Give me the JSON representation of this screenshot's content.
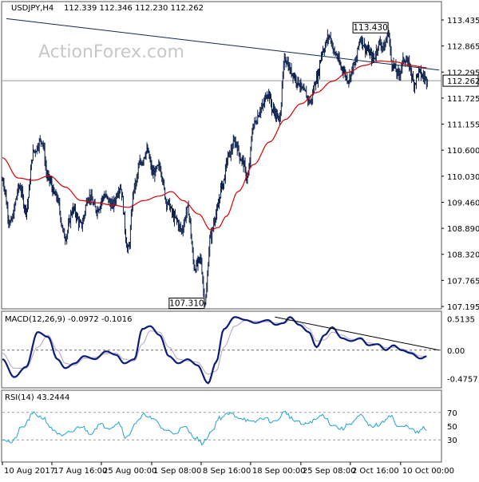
{
  "chart_data": {
    "type": "financial",
    "header": {
      "symbol_label": "USDJPY,H4",
      "ohlc": "112.339 112.346 112.230 112.262"
    },
    "watermark": "ActionForex.com",
    "price_panel": {
      "y_ticks": [
        "113.435",
        "112.865",
        "112.295",
        "111.725",
        "111.155",
        "110.600",
        "110.030",
        "109.460",
        "108.890",
        "108.320",
        "107.765",
        "107.195"
      ],
      "y_range": [
        107.195,
        113.7
      ],
      "last_price": "112.262",
      "last_value": 112.262,
      "annotations": [
        {
          "label": "113.430",
          "value": 113.43,
          "bar": 491
        },
        {
          "label": "107.310",
          "value": 107.31,
          "bar": 257
        }
      ],
      "trendline": {
        "from": {
          "bar": 5,
          "value": 113.64
        },
        "to": {
          "bar": 556,
          "value": 112.5
        }
      },
      "anchors": [
        [
          0,
          110.05
        ],
        [
          10,
          109.1
        ],
        [
          22,
          109.9
        ],
        [
          30,
          109.4
        ],
        [
          40,
          110.7
        ],
        [
          50,
          110.95
        ],
        [
          58,
          110.1
        ],
        [
          68,
          109.7
        ],
        [
          80,
          108.8
        ],
        [
          90,
          109.4
        ],
        [
          100,
          109.05
        ],
        [
          110,
          109.7
        ],
        [
          120,
          109.4
        ],
        [
          130,
          109.7
        ],
        [
          140,
          109.5
        ],
        [
          150,
          109.9
        ],
        [
          160,
          108.5
        ],
        [
          168,
          109.9
        ],
        [
          176,
          110.45
        ],
        [
          184,
          110.7
        ],
        [
          192,
          110.2
        ],
        [
          200,
          110.35
        ],
        [
          210,
          109.55
        ],
        [
          220,
          109.2
        ],
        [
          228,
          108.95
        ],
        [
          236,
          109.4
        ],
        [
          245,
          108.1
        ],
        [
          252,
          108.3
        ],
        [
          258,
          107.35
        ],
        [
          265,
          108.8
        ],
        [
          272,
          109.3
        ],
        [
          280,
          109.95
        ],
        [
          288,
          110.6
        ],
        [
          296,
          110.9
        ],
        [
          305,
          110.5
        ],
        [
          312,
          110.1
        ],
        [
          320,
          111.3
        ],
        [
          330,
          111.65
        ],
        [
          338,
          112.0
        ],
        [
          345,
          111.6
        ],
        [
          352,
          111.4
        ],
        [
          360,
          112.75
        ],
        [
          368,
          112.45
        ],
        [
          376,
          112.25
        ],
        [
          384,
          112.0
        ],
        [
          392,
          111.8
        ],
        [
          400,
          112.3
        ],
        [
          408,
          112.95
        ],
        [
          416,
          113.25
        ],
        [
          424,
          112.85
        ],
        [
          432,
          112.55
        ],
        [
          440,
          112.3
        ],
        [
          448,
          112.6
        ],
        [
          456,
          113.2
        ],
        [
          464,
          112.95
        ],
        [
          472,
          112.75
        ],
        [
          480,
          113.1
        ],
        [
          486,
          113.0
        ],
        [
          491,
          113.35
        ],
        [
          496,
          112.65
        ],
        [
          504,
          112.4
        ],
        [
          512,
          112.75
        ],
        [
          518,
          112.6
        ],
        [
          524,
          112.2
        ],
        [
          530,
          112.45
        ],
        [
          536,
          112.35
        ],
        [
          541,
          112.26
        ]
      ],
      "ma_anchors": [
        [
          0,
          110.55
        ],
        [
          20,
          110.1
        ],
        [
          40,
          110.05
        ],
        [
          60,
          110.15
        ],
        [
          80,
          109.9
        ],
        [
          100,
          109.6
        ],
        [
          120,
          109.55
        ],
        [
          140,
          109.5
        ],
        [
          160,
          109.45
        ],
        [
          180,
          109.6
        ],
        [
          200,
          109.7
        ],
        [
          215,
          109.8
        ],
        [
          230,
          109.6
        ],
        [
          250,
          109.3
        ],
        [
          265,
          108.95
        ],
        [
          275,
          109.0
        ],
        [
          285,
          109.25
        ],
        [
          300,
          109.8
        ],
        [
          320,
          110.4
        ],
        [
          340,
          110.9
        ],
        [
          360,
          111.4
        ],
        [
          380,
          111.75
        ],
        [
          400,
          112.0
        ],
        [
          420,
          112.25
        ],
        [
          440,
          112.45
        ],
        [
          460,
          112.6
        ],
        [
          480,
          112.7
        ],
        [
          500,
          112.68
        ],
        [
          520,
          112.6
        ],
        [
          541,
          112.55
        ]
      ]
    },
    "macd_panel": {
      "label": "MACD(12,26,9) -0.0972 -0.1016",
      "y_ticks": [
        "0.5135",
        "0.00",
        "-0.4757"
      ],
      "y_range": [
        -0.6,
        0.62
      ],
      "trendline": {
        "from": {
          "bar": 347,
          "value": 0.55
        },
        "to": {
          "bar": 556,
          "value": 0.0
        }
      },
      "anchors": [
        [
          0,
          -0.15
        ],
        [
          15,
          -0.45
        ],
        [
          30,
          -0.28
        ],
        [
          45,
          0.3
        ],
        [
          58,
          0.22
        ],
        [
          70,
          -0.15
        ],
        [
          80,
          -0.3
        ],
        [
          92,
          -0.22
        ],
        [
          104,
          -0.1
        ],
        [
          118,
          -0.15
        ],
        [
          132,
          -0.02
        ],
        [
          145,
          -0.08
        ],
        [
          155,
          -0.22
        ],
        [
          168,
          -0.15
        ],
        [
          178,
          0.35
        ],
        [
          188,
          0.4
        ],
        [
          200,
          0.25
        ],
        [
          212,
          -0.1
        ],
        [
          224,
          -0.22
        ],
        [
          236,
          -0.15
        ],
        [
          248,
          -0.25
        ],
        [
          262,
          -0.55
        ],
        [
          272,
          -0.2
        ],
        [
          282,
          0.35
        ],
        [
          296,
          0.55
        ],
        [
          310,
          0.5
        ],
        [
          322,
          0.45
        ],
        [
          338,
          0.5
        ],
        [
          348,
          0.42
        ],
        [
          358,
          0.45
        ],
        [
          366,
          0.55
        ],
        [
          378,
          0.42
        ],
        [
          390,
          0.3
        ],
        [
          400,
          0.05
        ],
        [
          410,
          0.25
        ],
        [
          420,
          0.38
        ],
        [
          432,
          0.2
        ],
        [
          444,
          0.15
        ],
        [
          456,
          0.2
        ],
        [
          466,
          0.08
        ],
        [
          478,
          0.1
        ],
        [
          488,
          0.0
        ],
        [
          498,
          0.08
        ],
        [
          508,
          0.0
        ],
        [
          520,
          -0.05
        ],
        [
          532,
          -0.14
        ],
        [
          541,
          -0.1
        ]
      ],
      "signal_anchors": [
        [
          0,
          -0.05
        ],
        [
          15,
          -0.3
        ],
        [
          30,
          -0.3
        ],
        [
          45,
          0.05
        ],
        [
          58,
          0.25
        ],
        [
          70,
          0.0
        ],
        [
          80,
          -0.22
        ],
        [
          92,
          -0.25
        ],
        [
          104,
          -0.14
        ],
        [
          118,
          -0.12
        ],
        [
          132,
          -0.06
        ],
        [
          145,
          -0.05
        ],
        [
          155,
          -0.15
        ],
        [
          168,
          -0.18
        ],
        [
          178,
          0.1
        ],
        [
          188,
          0.32
        ],
        [
          200,
          0.3
        ],
        [
          212,
          0.05
        ],
        [
          224,
          -0.15
        ],
        [
          236,
          -0.18
        ],
        [
          248,
          -0.2
        ],
        [
          262,
          -0.4
        ],
        [
          272,
          -0.35
        ],
        [
          282,
          0.05
        ],
        [
          296,
          0.4
        ],
        [
          310,
          0.5
        ],
        [
          322,
          0.48
        ],
        [
          338,
          0.47
        ],
        [
          348,
          0.45
        ],
        [
          358,
          0.44
        ],
        [
          366,
          0.5
        ],
        [
          378,
          0.47
        ],
        [
          390,
          0.36
        ],
        [
          400,
          0.15
        ],
        [
          410,
          0.17
        ],
        [
          420,
          0.3
        ],
        [
          432,
          0.25
        ],
        [
          444,
          0.18
        ],
        [
          456,
          0.18
        ],
        [
          466,
          0.12
        ],
        [
          478,
          0.1
        ],
        [
          488,
          0.04
        ],
        [
          498,
          0.05
        ],
        [
          508,
          0.02
        ],
        [
          520,
          -0.03
        ],
        [
          532,
          -0.1
        ],
        [
          541,
          -0.1
        ]
      ]
    },
    "rsi_panel": {
      "label": "RSI(14) 43.2444",
      "y_ticks": [
        "70",
        "50",
        "30"
      ],
      "y_range": [
        0,
        100
      ],
      "levels": [
        70,
        30
      ],
      "anchors": [
        [
          0,
          32
        ],
        [
          12,
          26
        ],
        [
          25,
          48
        ],
        [
          40,
          68
        ],
        [
          52,
          62
        ],
        [
          64,
          45
        ],
        [
          76,
          35
        ],
        [
          88,
          42
        ],
        [
          100,
          50
        ],
        [
          112,
          40
        ],
        [
          124,
          52
        ],
        [
          136,
          48
        ],
        [
          148,
          55
        ],
        [
          158,
          33
        ],
        [
          170,
          55
        ],
        [
          182,
          67
        ],
        [
          194,
          58
        ],
        [
          206,
          45
        ],
        [
          218,
          40
        ],
        [
          232,
          48
        ],
        [
          244,
          35
        ],
        [
          255,
          25
        ],
        [
          266,
          42
        ],
        [
          276,
          62
        ],
        [
          290,
          68
        ],
        [
          304,
          62
        ],
        [
          318,
          55
        ],
        [
          332,
          62
        ],
        [
          346,
          56
        ],
        [
          360,
          70
        ],
        [
          372,
          58
        ],
        [
          384,
          52
        ],
        [
          396,
          58
        ],
        [
          408,
          66
        ],
        [
          420,
          52
        ],
        [
          432,
          46
        ],
        [
          444,
          55
        ],
        [
          456,
          65
        ],
        [
          468,
          50
        ],
        [
          480,
          52
        ],
        [
          494,
          66
        ],
        [
          504,
          48
        ],
        [
          516,
          50
        ],
        [
          528,
          40
        ],
        [
          536,
          47
        ],
        [
          541,
          43
        ]
      ]
    },
    "x_axis": {
      "bars_total": 560,
      "ticks": [
        {
          "label": "10 Aug 2017",
          "bar": 0
        },
        {
          "label": "17 Aug 16:00",
          "bar": 63
        },
        {
          "label": "25 Aug 00:00",
          "bar": 126
        },
        {
          "label": "1 Sep 08:00",
          "bar": 190
        },
        {
          "label": "8 Sep 16:00",
          "bar": 253
        },
        {
          "label": "18 Sep 00:00",
          "bar": 316
        },
        {
          "label": "25 Sep 08:00",
          "bar": 380
        },
        {
          "label": "2 Oct 16:00",
          "bar": 443
        },
        {
          "label": "10 Oct 00:00",
          "bar": 507
        }
      ]
    },
    "colors": {
      "price": "#0b1f4d",
      "ma": "#d60000",
      "macd": "#0a1e78",
      "signal": "#b5a0c8",
      "rsi": "#1da1d8",
      "grid": "#999999",
      "trendline": "#0f2a50",
      "watermark": "#c8c8c8"
    }
  }
}
